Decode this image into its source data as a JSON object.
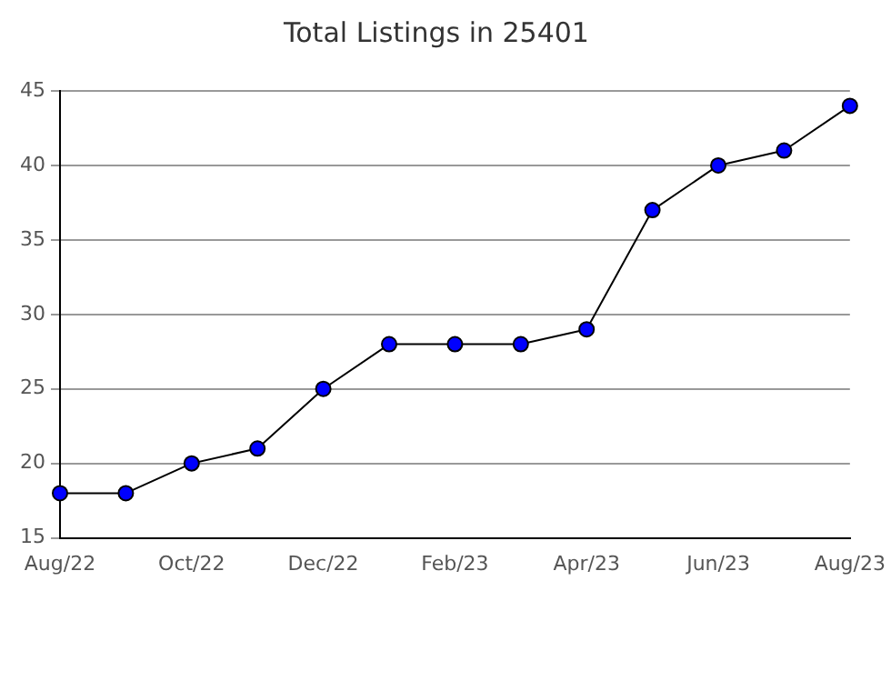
{
  "chart_data": {
    "type": "line",
    "title": "Total Listings in 25401",
    "categories": [
      "Aug/22",
      null,
      "Oct/22",
      null,
      "Dec/22",
      null,
      "Feb/23",
      null,
      "Apr/23",
      null,
      "Jun/23",
      null,
      "Aug/23"
    ],
    "series": [
      {
        "color": "#0000ff",
        "values": [
          18,
          18,
          20,
          21,
          25,
          28,
          28,
          28,
          29,
          37,
          40,
          41,
          44
        ]
      }
    ],
    "ylim": [
      15,
      45
    ],
    "yticks": [
      15,
      20,
      25,
      30,
      35,
      40,
      45
    ],
    "grid": "y",
    "legend": false,
    "marker": "circle",
    "line_style": "solid"
  }
}
